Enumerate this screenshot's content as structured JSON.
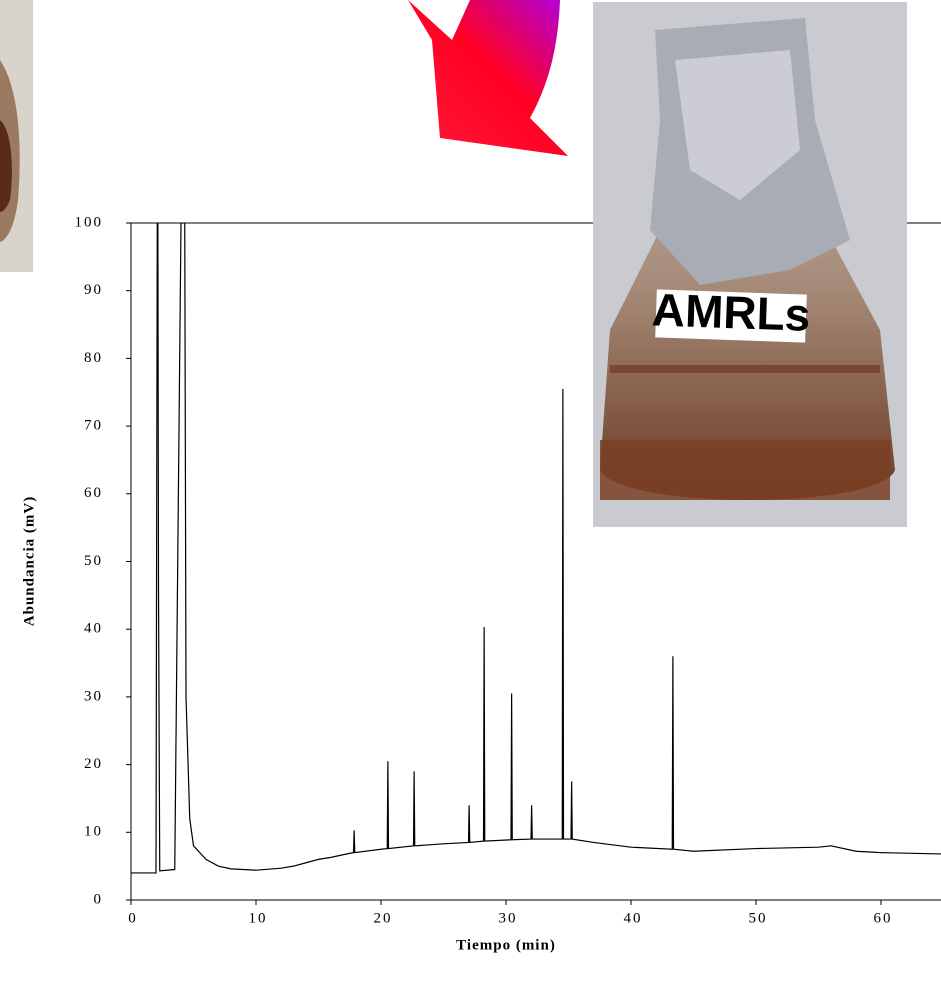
{
  "chart_data": {
    "type": "line",
    "x": [
      0,
      2.0,
      2.1,
      2.15,
      2.2,
      2.3,
      3.5,
      4.0,
      4.3,
      4.4,
      4.7,
      5,
      6,
      7,
      8,
      10,
      12,
      13,
      14,
      15,
      16,
      17,
      17.8,
      17.85,
      17.9,
      20,
      20.5,
      20.55,
      20.6,
      22.6,
      22.65,
      22.7,
      25,
      27,
      27.05,
      27.1,
      28.2,
      28.25,
      28.3,
      30.4,
      30.45,
      30.5,
      32,
      32.05,
      32.1,
      34.5,
      34.55,
      34.6,
      35.2,
      35.25,
      35.3,
      37,
      40,
      43.3,
      43.35,
      43.4,
      45,
      50,
      55,
      56,
      58,
      60,
      64.8
    ],
    "values": [
      4,
      4,
      100,
      100,
      46,
      4.3,
      4.5,
      100,
      100,
      30,
      12,
      8,
      6,
      5,
      4.6,
      4.4,
      4.7,
      5,
      5.5,
      6,
      6.3,
      6.7,
      7,
      10.3,
      7,
      7.5,
      7.6,
      20.5,
      7.6,
      8,
      19,
      8,
      8.3,
      8.5,
      14,
      8.5,
      8.7,
      40.3,
      8.7,
      8.9,
      30.5,
      8.9,
      9,
      14,
      9,
      9,
      75.5,
      9,
      9,
      17.5,
      9,
      8.5,
      7.8,
      7.5,
      36,
      7.5,
      7.2,
      7.6,
      7.8,
      8,
      7.2,
      7,
      6.8
    ],
    "color": "#000000",
    "xlim": [
      0,
      64.8
    ],
    "ylim": [
      0,
      100
    ],
    "xticks": [
      0,
      10,
      20,
      30,
      40,
      50,
      60
    ],
    "yticks": [
      0,
      10,
      20,
      30,
      40,
      50,
      60,
      70,
      80,
      90,
      100
    ],
    "xlabel": "Tiempo (min)",
    "ylabel": "Abundancia (mV)",
    "annotation": "AMRLs"
  }
}
